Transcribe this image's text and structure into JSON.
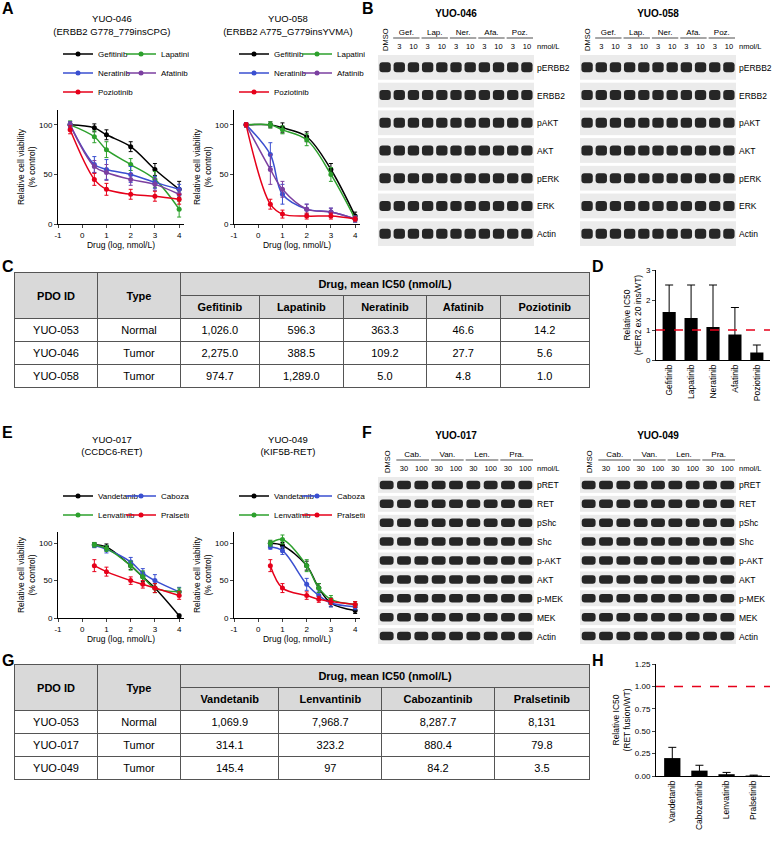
{
  "chart_data": [
    {
      "panel": "A",
      "type": "line",
      "title": "YUO-046",
      "subtitle": "(ERBB2 G778_779insCPG)",
      "x_label": "Drug (log, nmol/L)",
      "y_label": [
        "Relative cell viability",
        "(% control)"
      ],
      "x": [
        -0.5,
        0.5,
        1,
        2,
        3,
        4
      ],
      "xlim": [
        -1,
        4.2
      ],
      "xticks": [
        -1,
        0,
        1,
        2,
        3,
        4
      ],
      "ylim": [
        0,
        115
      ],
      "yticks": [
        0,
        50,
        100
      ],
      "legend": "top",
      "series": [
        {
          "name": "Gefitinib",
          "color": "#000000",
          "marker": "circle",
          "line_style": "solid",
          "values": [
            100,
            97,
            90,
            78,
            55,
            35
          ],
          "errors": [
            3,
            4,
            5,
            5,
            6,
            8
          ]
        },
        {
          "name": "Lapatinib",
          "color": "#2ca02c",
          "marker": "circle",
          "line_style": "solid",
          "values": [
            100,
            88,
            75,
            60,
            45,
            15
          ],
          "errors": [
            4,
            6,
            8,
            6,
            8,
            8
          ]
        },
        {
          "name": "Neratinib",
          "color": "#3a4fd0",
          "marker": "circle",
          "line_style": "solid",
          "values": [
            100,
            60,
            55,
            50,
            42,
            35
          ],
          "errors": [
            3,
            8,
            10,
            8,
            6,
            5
          ]
        },
        {
          "name": "Afatinib",
          "color": "#7b3fa0",
          "marker": "circle",
          "line_style": "solid",
          "values": [
            100,
            58,
            52,
            45,
            40,
            30
          ],
          "errors": [
            3,
            6,
            8,
            6,
            6,
            5
          ]
        },
        {
          "name": "Poziotinib",
          "color": "#e6001a",
          "marker": "circle",
          "line_style": "solid",
          "values": [
            95,
            45,
            35,
            30,
            28,
            25
          ],
          "errors": [
            4,
            6,
            6,
            5,
            5,
            5
          ]
        }
      ]
    },
    {
      "panel": "A",
      "type": "line",
      "title": "YUO-058",
      "subtitle": "(ERBB2 A775_G779insYVMA)",
      "x_label": "Drug (log, nmol/L)",
      "y_label": [
        "Relative cell viability",
        "(% control)"
      ],
      "x": [
        -0.5,
        0.5,
        1,
        2,
        3,
        4
      ],
      "xlim": [
        -1,
        4.2
      ],
      "xticks": [
        -1,
        0,
        1,
        2,
        3,
        4
      ],
      "ylim": [
        0,
        115
      ],
      "yticks": [
        0,
        50,
        100
      ],
      "legend": "top",
      "series": [
        {
          "name": "Gefitinib",
          "color": "#000000",
          "marker": "circle",
          "line_style": "solid",
          "values": [
            100,
            100,
            97,
            88,
            55,
            8
          ],
          "errors": [
            2,
            3,
            5,
            5,
            6,
            4
          ]
        },
        {
          "name": "Lapatinib",
          "color": "#2ca02c",
          "marker": "circle",
          "line_style": "solid",
          "values": [
            100,
            100,
            95,
            85,
            50,
            5
          ],
          "errors": [
            2,
            3,
            4,
            6,
            7,
            3
          ]
        },
        {
          "name": "Neratinib",
          "color": "#3a4fd0",
          "marker": "circle",
          "line_style": "solid",
          "values": [
            100,
            70,
            30,
            15,
            12,
            5
          ],
          "errors": [
            2,
            12,
            10,
            5,
            4,
            3
          ]
        },
        {
          "name": "Afatinib",
          "color": "#7b3fa0",
          "marker": "circle",
          "line_style": "solid",
          "values": [
            100,
            55,
            35,
            15,
            12,
            5
          ],
          "errors": [
            2,
            15,
            8,
            5,
            4,
            3
          ]
        },
        {
          "name": "Poziotinib",
          "color": "#e6001a",
          "marker": "circle",
          "line_style": "solid",
          "values": [
            100,
            20,
            10,
            8,
            8,
            5
          ],
          "errors": [
            2,
            5,
            4,
            3,
            3,
            2
          ]
        }
      ]
    },
    {
      "panel": "D",
      "type": "bar",
      "y_label": [
        "Relative IC50",
        "(HER2 ex 20 ins/WT)"
      ],
      "categories": [
        "Gefitinib",
        "Lapatinib",
        "Neratinib",
        "Afatinib",
        "Poziotinib"
      ],
      "values": [
        1.6,
        1.4,
        1.1,
        0.85,
        0.25
      ],
      "errors": [
        0.9,
        1.1,
        1.4,
        0.9,
        0.25
      ],
      "color": "#000000",
      "reference_line": 1,
      "ylim": [
        0,
        3
      ],
      "yticks": [
        0,
        1,
        2,
        3
      ]
    },
    {
      "panel": "E",
      "type": "line",
      "title": "YUO-017",
      "subtitle": "(CCDC6-RET)",
      "x_label": "Drug (log, nmol/L)",
      "y_label": [
        "Relative cell viability",
        "(% control)"
      ],
      "x": [
        0.5,
        1,
        2,
        2.5,
        3,
        4
      ],
      "xlim": [
        -1,
        4.2
      ],
      "xticks": [
        -1,
        0,
        1,
        2,
        3,
        4
      ],
      "ylim": [
        0,
        115
      ],
      "yticks": [
        0,
        50,
        100
      ],
      "legend": "top",
      "series": [
        {
          "name": "Vandetanib",
          "color": "#000000",
          "marker": "circle",
          "line_style": "solid",
          "values": [
            98,
            95,
            70,
            55,
            40,
            3
          ],
          "errors": [
            3,
            4,
            5,
            6,
            6,
            2
          ]
        },
        {
          "name": "Cabozantinib",
          "color": "#3a4fd0",
          "marker": "circle",
          "line_style": "solid",
          "values": [
            97,
            92,
            75,
            60,
            50,
            35
          ],
          "errors": [
            3,
            5,
            6,
            6,
            8,
            6
          ]
        },
        {
          "name": "Lenvatinib",
          "color": "#2ca02c",
          "marker": "circle",
          "line_style": "solid",
          "values": [
            98,
            93,
            70,
            55,
            40,
            35
          ],
          "errors": [
            3,
            4,
            6,
            8,
            6,
            5
          ]
        },
        {
          "name": "Pralsetinib",
          "color": "#e6001a",
          "marker": "circle",
          "line_style": "solid",
          "values": [
            70,
            62,
            50,
            45,
            40,
            30
          ],
          "errors": [
            8,
            6,
            5,
            5,
            6,
            5
          ]
        }
      ]
    },
    {
      "panel": "E",
      "type": "line",
      "title": "YUO-049",
      "subtitle": "(KIF5B-RET)",
      "x_label": "Drug (log, nmol/L)",
      "y_label": [
        "Relative cell viability",
        "(% control)"
      ],
      "x": [
        0.5,
        1,
        2,
        2.5,
        3,
        4
      ],
      "xlim": [
        -1,
        4.2
      ],
      "xticks": [
        -1,
        0,
        1,
        2,
        3,
        4
      ],
      "ylim": [
        0,
        115
      ],
      "yticks": [
        0,
        50,
        100
      ],
      "legend": "top",
      "series": [
        {
          "name": "Vandetanib",
          "color": "#000000",
          "marker": "circle",
          "line_style": "solid",
          "values": [
            100,
            97,
            70,
            40,
            20,
            10
          ],
          "errors": [
            3,
            4,
            6,
            6,
            5,
            4
          ]
        },
        {
          "name": "Cabozantinib",
          "color": "#3a4fd0",
          "marker": "circle",
          "line_style": "solid",
          "values": [
            95,
            90,
            45,
            30,
            20,
            15
          ],
          "errors": [
            3,
            5,
            8,
            6,
            5,
            4
          ]
        },
        {
          "name": "Lenvatinib",
          "color": "#2ca02c",
          "marker": "circle",
          "line_style": "solid",
          "values": [
            100,
            105,
            70,
            40,
            25,
            18
          ],
          "errors": [
            4,
            6,
            8,
            6,
            5,
            4
          ]
        },
        {
          "name": "Pralsetinib",
          "color": "#e6001a",
          "marker": "circle",
          "line_style": "solid",
          "values": [
            70,
            40,
            30,
            25,
            22,
            18
          ],
          "errors": [
            8,
            6,
            5,
            4,
            4,
            4
          ]
        }
      ]
    },
    {
      "panel": "H",
      "type": "bar",
      "y_label": [
        "Relative IC50",
        "(RET fusion/WT)"
      ],
      "categories": [
        "Vandetanib",
        "Cabozantinib",
        "Lenvatinib",
        "Pralsetinib"
      ],
      "values": [
        0.2,
        0.06,
        0.02,
        0.005
      ],
      "errors": [
        0.12,
        0.06,
        0.02,
        0.005
      ],
      "color": "#000000",
      "reference_line": 1,
      "ylim": [
        0,
        1.25
      ],
      "yticks": [
        {
          "value": 0,
          "label": "0.00"
        },
        0.25,
        {
          "value": 0.5,
          "label": "0.50"
        },
        0.75,
        {
          "value": 1,
          "label": "1.00"
        },
        1.25
      ]
    }
  ],
  "blots": [
    {
      "panel": "B",
      "title": "YUO-046",
      "unit": "nmol/L",
      "lanes": [
        {
          "drug": "DMSO"
        },
        {
          "drug": "Gef.",
          "doses": [
            3,
            10
          ]
        },
        {
          "drug": "Lap.",
          "doses": [
            3,
            10
          ]
        },
        {
          "drug": "Ner.",
          "doses": [
            3,
            10
          ]
        },
        {
          "drug": "Afa.",
          "doses": [
            3,
            10
          ]
        },
        {
          "drug": "Poz.",
          "doses": [
            3,
            10
          ]
        }
      ],
      "rows": [
        "pERBB2",
        "ERBB2",
        "pAKT",
        "AKT",
        "pERK",
        "ERK",
        "Actin"
      ]
    },
    {
      "panel": "B",
      "title": "YUO-058",
      "unit": "nmol/L",
      "lanes": [
        {
          "drug": "DMSO"
        },
        {
          "drug": "Gef.",
          "doses": [
            3,
            10
          ]
        },
        {
          "drug": "Lap.",
          "doses": [
            3,
            10
          ]
        },
        {
          "drug": "Ner.",
          "doses": [
            3,
            10
          ]
        },
        {
          "drug": "Afa.",
          "doses": [
            3,
            10
          ]
        },
        {
          "drug": "Poz.",
          "doses": [
            3,
            10
          ]
        }
      ],
      "rows": [
        "pERBB2",
        "ERBB2",
        "pAKT",
        "AKT",
        "pERK",
        "ERK",
        "Actin"
      ]
    },
    {
      "panel": "F",
      "title": "YUO-017",
      "unit": "nmol/L",
      "lanes": [
        {
          "drug": "DMSO"
        },
        {
          "drug": "Cab.",
          "doses": [
            30,
            100
          ]
        },
        {
          "drug": "Van.",
          "doses": [
            30,
            100
          ]
        },
        {
          "drug": "Len.",
          "doses": [
            30,
            100
          ]
        },
        {
          "drug": "Pra.",
          "doses": [
            30,
            100
          ]
        }
      ],
      "rows": [
        "pRET",
        "RET",
        "pShc",
        "Shc",
        "p-AKT",
        "AKT",
        "p-MEK",
        "MEK",
        "Actin"
      ]
    },
    {
      "panel": "F",
      "title": "YUO-049",
      "unit": "nmol/L",
      "lanes": [
        {
          "drug": "DMSO"
        },
        {
          "drug": "Cab.",
          "doses": [
            30,
            100
          ]
        },
        {
          "drug": "Van.",
          "doses": [
            30,
            100
          ]
        },
        {
          "drug": "Len.",
          "doses": [
            30,
            100
          ]
        },
        {
          "drug": "Pra.",
          "doses": [
            30,
            100
          ]
        }
      ],
      "rows": [
        "pRET",
        "RET",
        "pShc",
        "Shc",
        "p-AKT",
        "AKT",
        "p-MEK",
        "MEK",
        "Actin"
      ]
    }
  ],
  "tables": [
    {
      "panel": "C",
      "header": [
        "PDO ID",
        "Type"
      ],
      "group_header": "Drug, mean IC50 (nmol/L)",
      "drugs": [
        "Gefitinib",
        "Lapatinib",
        "Neratinib",
        "Afatinib",
        "Poziotinib"
      ],
      "rows": [
        [
          "YUO-053",
          "Normal",
          "1,026.0",
          "596.3",
          "363.3",
          "46.6",
          "14.2"
        ],
        [
          "YUO-046",
          "Tumor",
          "2,275.0",
          "388.5",
          "109.2",
          "27.7",
          "5.6"
        ],
        [
          "YUO-058",
          "Tumor",
          "974.7",
          "1,289.0",
          "5.0",
          "4.8",
          "1.0"
        ]
      ]
    },
    {
      "panel": "G",
      "header": [
        "PDO ID",
        "Type"
      ],
      "group_header": "Drug, mean IC50 (nmol/L)",
      "drugs": [
        "Vandetanib",
        "Lenvantinib",
        "Cabozantinib",
        "Pralsetinib"
      ],
      "rows": [
        [
          "YUO-053",
          "Normal",
          "1,069.9",
          "7,968.7",
          "8,287.7",
          "8,131"
        ],
        [
          "YUO-017",
          "Tumor",
          "314.1",
          "323.2",
          "880.4",
          "79.8"
        ],
        [
          "YUO-049",
          "Tumor",
          "145.4",
          "97",
          "84.2",
          "3.5"
        ]
      ]
    }
  ]
}
